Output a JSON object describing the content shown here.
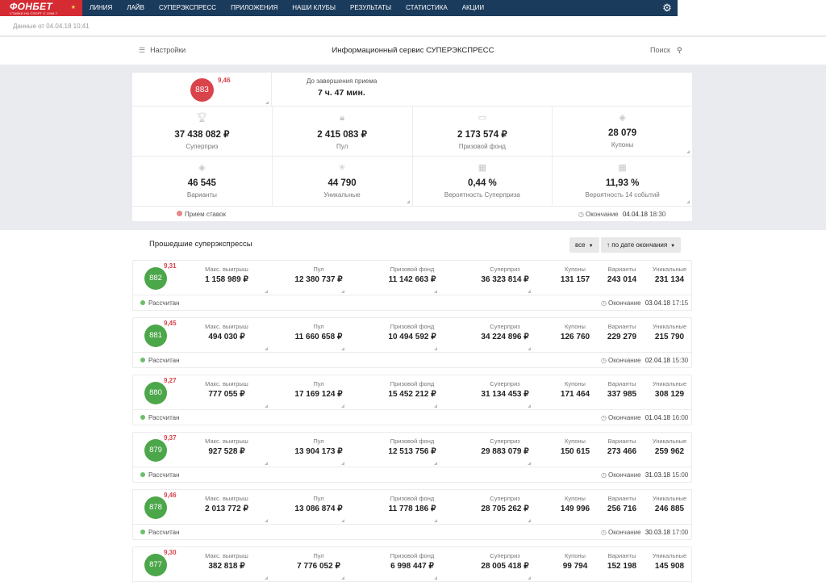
{
  "nav": {
    "logo": "ФОНБЕТ",
    "logo_sub": "СТАВКИ НА СПОРТ С 1994 Г.",
    "items": [
      "ЛИНИЯ",
      "ЛАЙВ",
      "СУПЕРЭКСПРЕСС",
      "ПРИЛОЖЕНИЯ",
      "НАШИ КЛУБЫ",
      "РЕЗУЛЬТАТЫ",
      "СТАТИСТИКА",
      "АКЦИИ"
    ],
    "active_color": "#d52b33"
  },
  "data_info": "Данные от 04.04.18 10:41",
  "header": {
    "settings": "Настройки",
    "title": "Информационный сервис СУПЕРЭКСПРЕСС",
    "search": "Поиск"
  },
  "current": {
    "number": "883",
    "odds": "9,46",
    "deadline_label": "До завершения приема",
    "deadline_value": "7 ч. 47 мин.",
    "stats": [
      {
        "value": "37 438 082 ₽",
        "label": "Суперприз",
        "icon": "trophy-icon"
      },
      {
        "value": "2 415 083 ₽",
        "label": "Пул",
        "icon": "bag-icon"
      },
      {
        "value": "2 173 574 ₽",
        "label": "Призовой фонд",
        "icon": "money-icon"
      },
      {
        "value": "28 079",
        "label": "Купоны",
        "icon": "tag-icon"
      },
      {
        "value": "46 545",
        "label": "Варианты",
        "icon": "tags-icon"
      },
      {
        "value": "44 790",
        "label": "Уникальные",
        "icon": "snowflake-icon"
      },
      {
        "value": "0,44 %",
        "label": "Вероятность Суперприза",
        "icon": "calc-icon"
      },
      {
        "value": "11,93 %",
        "label": "Вероятность 14 событий",
        "icon": "calc-icon"
      }
    ],
    "status": "Прием ставок",
    "end_label": "Окончание",
    "end_date": "04.04.18",
    "end_time": "18:30"
  },
  "past": {
    "title": "Прошедшие суперэкспрессы",
    "filter": "все",
    "sort": "по дате окончания",
    "labels": {
      "max_win": "Макс. выигрыш",
      "pool": "Пул",
      "prize_fund": "Призовой фонд",
      "superprize": "Суперприз",
      "coupons": "Купоны",
      "variants": "Варианты",
      "unique": "Уникальные",
      "end": "Окончание"
    },
    "rows": [
      {
        "num": "882",
        "odds": "9,31",
        "max": "1 158 989 ₽",
        "pool": "12 380 737 ₽",
        "fund": "11 142 663 ₽",
        "super": "36 323 814 ₽",
        "coupons": "131 157",
        "variants": "243 014",
        "unique": "231 134",
        "status": "Рассчитан",
        "date": "03.04.18",
        "time": "17:15"
      },
      {
        "num": "881",
        "odds": "9,45",
        "max": "494 030 ₽",
        "pool": "11 660 658 ₽",
        "fund": "10 494 592 ₽",
        "super": "34 224 896 ₽",
        "coupons": "126 760",
        "variants": "229 279",
        "unique": "215 790",
        "status": "Рассчитан",
        "date": "02.04.18",
        "time": "15:30"
      },
      {
        "num": "880",
        "odds": "9,27",
        "max": "777 055 ₽",
        "pool": "17 169 124 ₽",
        "fund": "15 452 212 ₽",
        "super": "31 134 453 ₽",
        "coupons": "171 464",
        "variants": "337 985",
        "unique": "308 129",
        "status": "Рассчитан",
        "date": "01.04.18",
        "time": "16:00"
      },
      {
        "num": "879",
        "odds": "9,37",
        "max": "927 528 ₽",
        "pool": "13 904 173 ₽",
        "fund": "12 513 756 ₽",
        "super": "29 883 079 ₽",
        "coupons": "150 615",
        "variants": "273 466",
        "unique": "259 962",
        "status": "Рассчитан",
        "date": "31.03.18",
        "time": "15:00"
      },
      {
        "num": "878",
        "odds": "9,46",
        "max": "2 013 772 ₽",
        "pool": "13 086 874 ₽",
        "fund": "11 778 186 ₽",
        "super": "28 705 262 ₽",
        "coupons": "149 996",
        "variants": "256 716",
        "unique": "246 885",
        "status": "Рассчитан",
        "date": "30.03.18",
        "time": "17:00"
      },
      {
        "num": "877",
        "odds": "9,30",
        "max": "382 818 ₽",
        "pool": "7 776 052 ₽",
        "fund": "6 998 447 ₽",
        "super": "28 005 418 ₽",
        "coupons": "99 794",
        "variants": "152 198",
        "unique": "145 908",
        "status": "",
        "date": "",
        "time": ""
      }
    ]
  }
}
